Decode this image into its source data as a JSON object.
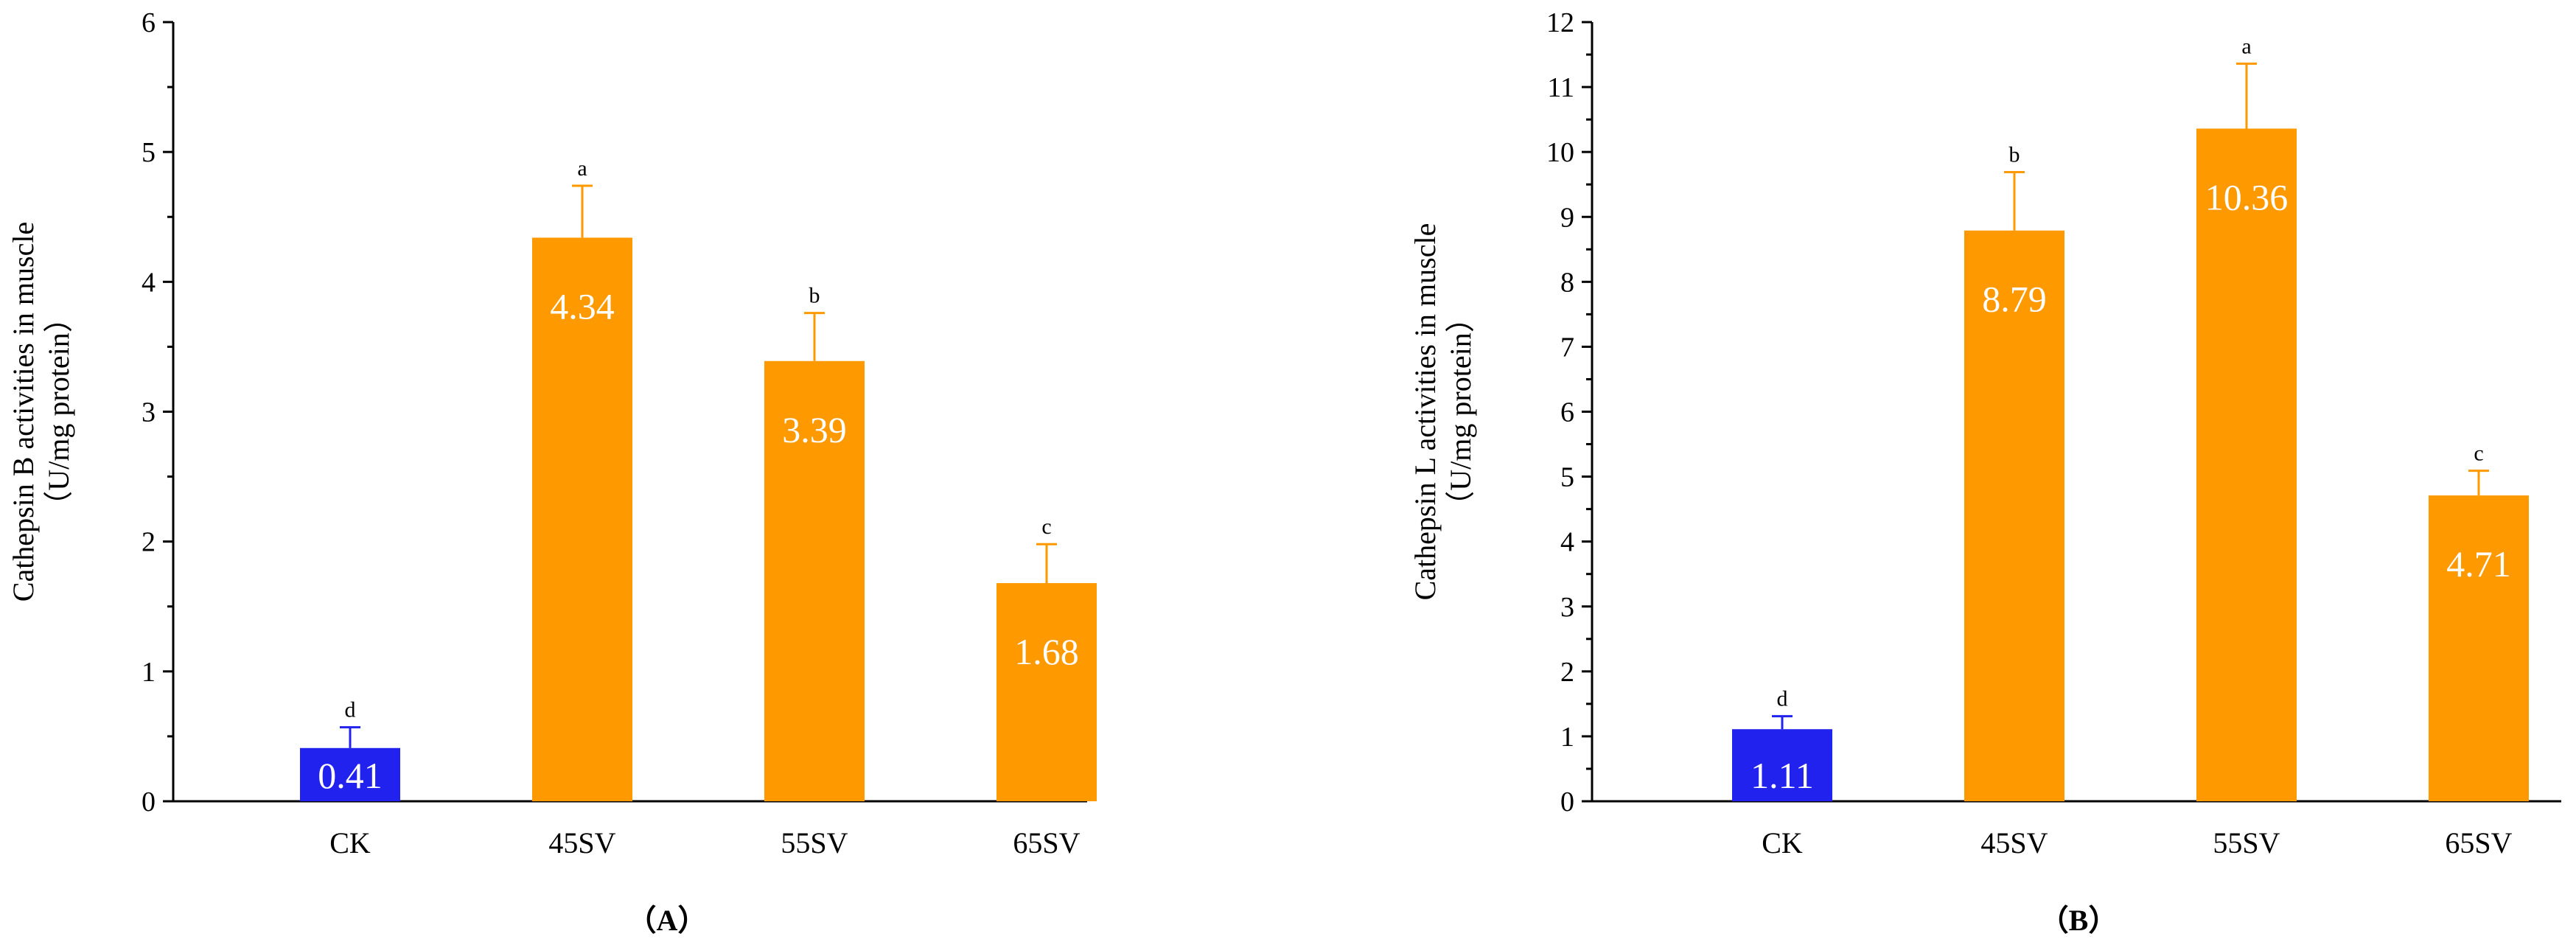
{
  "chart_data": [
    {
      "type": "bar",
      "panel_label": "（A）",
      "ylabel_line1": "Cathepsin B activities in muscle",
      "ylabel_line2": "（U/mg protein）",
      "categories": [
        "CK",
        "45SV",
        "55SV",
        "65SV"
      ],
      "values": [
        0.41,
        4.34,
        3.39,
        1.68
      ],
      "value_labels": [
        "0.41",
        "4.34",
        "3.39",
        "1.68"
      ],
      "errors": [
        0.16,
        0.4,
        0.37,
        0.3
      ],
      "significance": [
        "d",
        "a",
        "b",
        "c"
      ],
      "bar_colors": [
        "#2222ee",
        "#ff9900",
        "#ff9900",
        "#ff9900"
      ],
      "ylim": [
        0,
        6
      ],
      "yticks": [
        0,
        1,
        2,
        3,
        4,
        5,
        6
      ],
      "minor_ticks": true
    },
    {
      "type": "bar",
      "panel_label": "（B）",
      "ylabel_line1": "Cathepsin L activities in muscle",
      "ylabel_line2": "（U/mg protein）",
      "categories": [
        "CK",
        "45SV",
        "55SV",
        "65SV"
      ],
      "values": [
        1.11,
        8.79,
        10.36,
        4.71
      ],
      "value_labels": [
        "1.11",
        "8.79",
        "10.36",
        "4.71"
      ],
      "errors": [
        0.2,
        0.9,
        1.0,
        0.38
      ],
      "significance": [
        "d",
        "b",
        "a",
        "c"
      ],
      "bar_colors": [
        "#2222ee",
        "#ff9900",
        "#ff9900",
        "#ff9900"
      ],
      "ylim": [
        0,
        12
      ],
      "yticks": [
        0,
        1,
        2,
        3,
        4,
        5,
        6,
        7,
        8,
        9,
        10,
        11,
        12
      ],
      "minor_ticks": true
    }
  ]
}
